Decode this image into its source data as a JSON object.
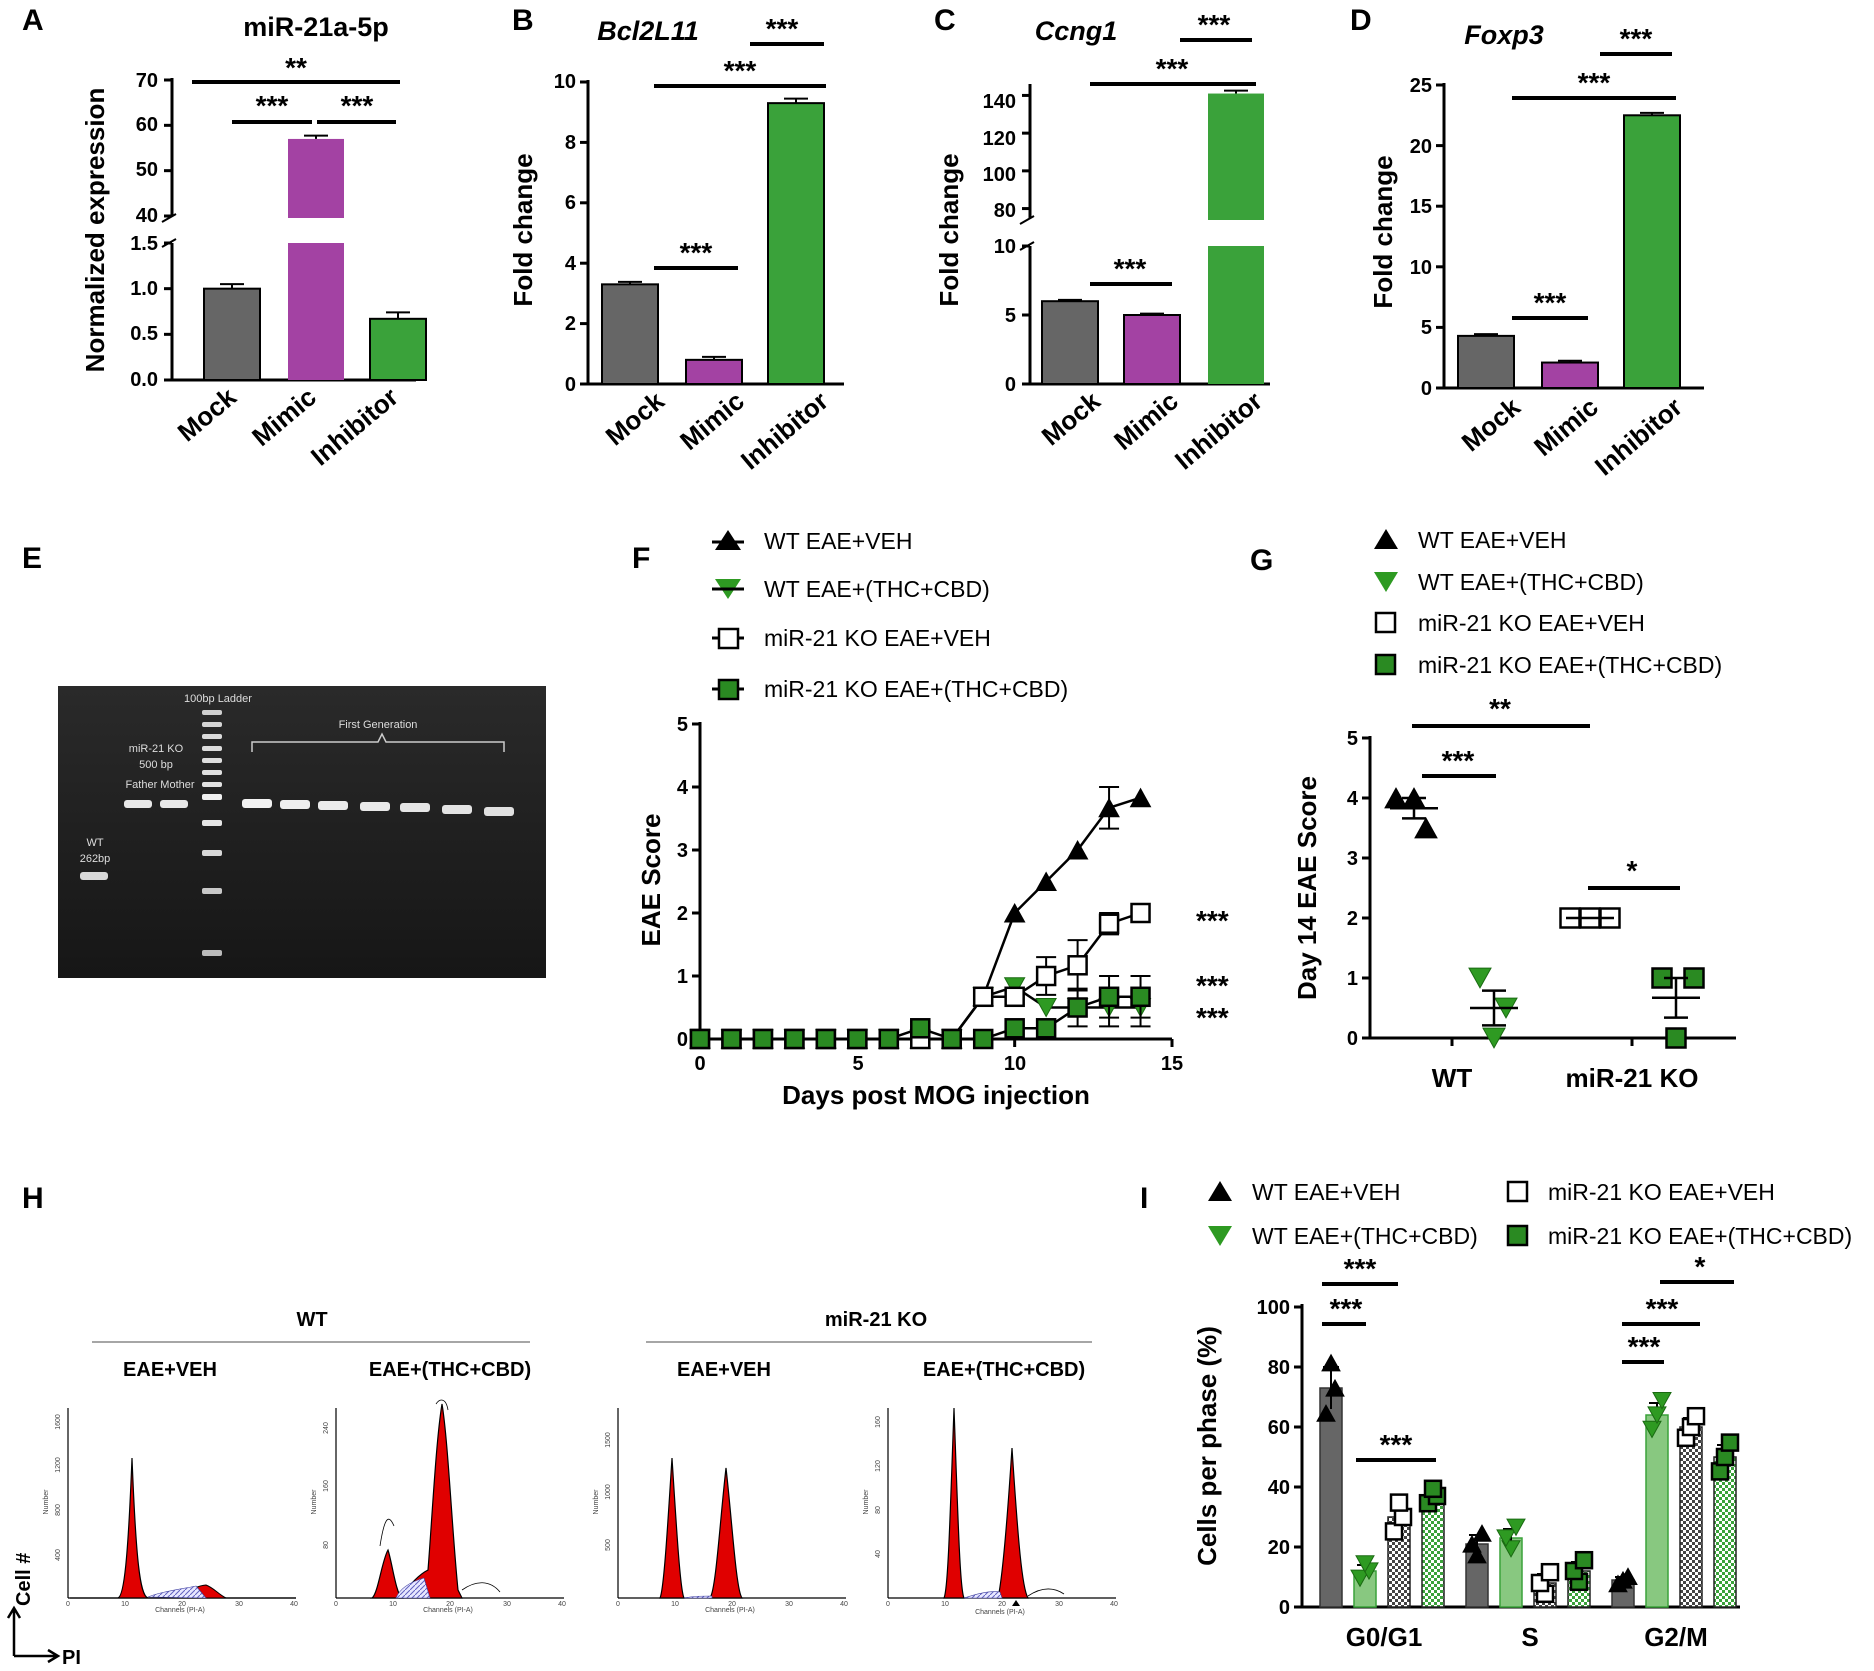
{
  "colors": {
    "mock": "#666666",
    "mimic": "#a342a3",
    "inhibitor": "#3aa23a",
    "green_marker": "#2e9a22",
    "ko_green": "#2a8a22",
    "axis": "#000000",
    "gel_bg": "#1c1c1c",
    "flow_red": "#e00000"
  },
  "panels": {
    "A": {
      "label": "A",
      "title": "miR-21a-5p",
      "ylabel": "Normalized expression",
      "upper_ticks": [
        "70",
        "60",
        "50",
        "40"
      ],
      "lower_ticks": [
        "1.5",
        "1.0",
        "0.5",
        "0.0"
      ],
      "sig": [
        "**",
        "***",
        "***"
      ]
    },
    "B": {
      "label": "B",
      "title": "Bcl2L11",
      "ylabel": "Fold change",
      "ticks": [
        "10",
        "8",
        "6",
        "4",
        "2",
        "0"
      ],
      "sig": [
        "***",
        "***",
        "***"
      ]
    },
    "C": {
      "label": "C",
      "title": "Ccng1",
      "ylabel": "Fold change",
      "upper_ticks": [
        "140",
        "120",
        "100",
        "80"
      ],
      "lower_ticks": [
        "10",
        "5",
        "0"
      ],
      "sig": [
        "***",
        "***",
        "***"
      ]
    },
    "D": {
      "label": "D",
      "title": "Foxp3",
      "ylabel": "Fold change",
      "ticks": [
        "25",
        "20",
        "15",
        "10",
        "5",
        "0"
      ],
      "sig": [
        "***",
        "***",
        "***"
      ]
    },
    "E": {
      "label": "E",
      "gel_labels": {
        "ladder": "100bp Ladder",
        "ko_line1": "miR-21 KO",
        "ko_line2": "500 bp",
        "parents": "Father Mother",
        "first_gen": "First Generation",
        "wt_line1": "WT",
        "wt_line2": "262bp"
      }
    },
    "F": {
      "label": "F",
      "ylabel": "EAE Score",
      "xlabel": "Days post MOG injection",
      "yticks": [
        "5",
        "4",
        "3",
        "2",
        "1",
        "0"
      ],
      "xticks": [
        "0",
        "5",
        "10",
        "15"
      ],
      "sig": [
        "***",
        "***",
        "***"
      ],
      "legend": [
        "WT EAE+VEH",
        "WT EAE+(THC+CBD)",
        "miR-21 KO EAE+VEH",
        "miR-21 KO EAE+(THC+CBD)"
      ]
    },
    "G": {
      "label": "G",
      "ylabel": "Day 14 EAE Score",
      "yticks": [
        "5",
        "4",
        "3",
        "2",
        "1",
        "0"
      ],
      "xcats": [
        "WT",
        "miR-21 KO"
      ],
      "sig": [
        "**",
        "***",
        "*"
      ],
      "legend": [
        "WT EAE+VEH",
        "WT EAE+(THC+CBD)",
        "miR-21 KO EAE+VEH",
        "miR-21 KO EAE+(THC+CBD)"
      ]
    },
    "H": {
      "label": "H",
      "group_wt": "WT",
      "group_ko": "miR-21 KO",
      "conditions": [
        "EAE+VEH",
        "EAE+(THC+CBD)",
        "EAE+VEH",
        "EAE+(THC+CBD)"
      ],
      "y_axis": "Cell #",
      "x_axis": "PI",
      "mini_axis": {
        "ylabel": "Number",
        "xlabel": "Channels (PI-A)",
        "xticks": [
          "0",
          "10",
          "20",
          "30",
          "40"
        ],
        "yticks_1": [
          "1600",
          "1200",
          "800",
          "400"
        ],
        "yticks_2": [
          "240",
          "160",
          "80"
        ],
        "yticks_3": [
          "1500",
          "1000",
          "500"
        ],
        "yticks_4": [
          "160",
          "120",
          "80",
          "40"
        ]
      }
    },
    "I": {
      "label": "I",
      "ylabel": "Cells per phase (%)",
      "yticks": [
        "100",
        "80",
        "60",
        "40",
        "20",
        "0"
      ],
      "xcats": [
        "G0/G1",
        "S",
        "G2/M"
      ],
      "sig": [
        "***",
        "***",
        "***",
        "***",
        "***",
        "*"
      ],
      "legend": [
        "WT EAE+VEH",
        "WT EAE+(THC+CBD)",
        "miR-21 KO EAE+VEH",
        "miR-21 KO EAE+(THC+CBD)"
      ]
    }
  },
  "chart_data": [
    {
      "id": "A",
      "type": "bar",
      "title": "miR-21a-5p",
      "xlabel": "",
      "ylabel": "Normalized expression",
      "categories": [
        "Mock",
        "Mimic",
        "Inhibitor"
      ],
      "values": [
        1.0,
        57.0,
        0.67
      ],
      "errors": [
        0.05,
        0.3,
        0.07
      ],
      "y_axis_break": [
        1.5,
        40
      ],
      "ylim": [
        0,
        70
      ]
    },
    {
      "id": "B",
      "type": "bar",
      "title": "Bcl2L11",
      "ylabel": "Fold change",
      "categories": [
        "Mock",
        "Mimic",
        "Inhibitor"
      ],
      "values": [
        3.3,
        0.8,
        9.3
      ],
      "errors": [
        0.08,
        0.1,
        0.15
      ],
      "ylim": [
        0,
        10
      ]
    },
    {
      "id": "C",
      "type": "bar",
      "title": "Ccng1",
      "ylabel": "Fold change",
      "categories": [
        "Mock",
        "Mimic",
        "Inhibitor"
      ],
      "values": [
        6.0,
        5.0,
        141.0
      ],
      "errors": [
        0.1,
        0.1,
        0.5
      ],
      "y_axis_break": [
        10,
        75
      ],
      "ylim": [
        0,
        145
      ]
    },
    {
      "id": "D",
      "type": "bar",
      "title": "Foxp3",
      "ylabel": "Fold change",
      "categories": [
        "Mock",
        "Mimic",
        "Inhibitor"
      ],
      "values": [
        4.3,
        2.1,
        22.5
      ],
      "errors": [
        0.15,
        0.15,
        0.2
      ],
      "ylim": [
        0,
        25
      ]
    },
    {
      "id": "F",
      "type": "line",
      "xlabel": "Days post MOG injection",
      "ylabel": "EAE Score",
      "x": [
        0,
        1,
        2,
        3,
        4,
        5,
        6,
        7,
        8,
        9,
        10,
        11,
        12,
        13,
        14
      ],
      "xlim": [
        0,
        15
      ],
      "ylim": [
        0,
        5
      ],
      "series": [
        {
          "name": "WT EAE+VEH",
          "values": [
            0,
            0,
            0,
            0,
            0,
            0,
            0,
            0,
            0,
            0.67,
            2.0,
            2.5,
            3.0,
            3.67,
            3.83
          ],
          "errors": [
            0,
            0,
            0,
            0,
            0,
            0,
            0,
            0,
            0,
            0,
            0,
            0,
            0,
            0.33,
            0
          ]
        },
        {
          "name": "WT EAE+(THC+CBD)",
          "values": [
            0,
            0,
            0,
            0,
            0,
            0,
            0,
            0,
            0,
            0.67,
            0.83,
            0.5,
            0.5,
            0.5,
            0.5
          ],
          "errors": [
            0,
            0,
            0,
            0,
            0,
            0,
            0,
            0,
            0,
            0,
            0,
            0,
            0,
            0.3,
            0.3
          ]
        },
        {
          "name": "miR-21 KO EAE+VEH",
          "values": [
            0,
            0,
            0,
            0,
            0,
            0,
            0,
            0,
            0,
            0.67,
            0.67,
            1.0,
            1.17,
            1.83,
            2.0
          ],
          "errors": [
            0,
            0,
            0,
            0,
            0,
            0,
            0,
            0,
            0,
            0,
            0,
            0.3,
            0.4,
            0.17,
            0
          ]
        },
        {
          "name": "miR-21 KO EAE+(THC+CBD)",
          "values": [
            0,
            0,
            0,
            0,
            0,
            0,
            0,
            0.17,
            0,
            0,
            0.17,
            0.17,
            0.5,
            0.67,
            0.67
          ],
          "errors": [
            0,
            0,
            0,
            0,
            0,
            0,
            0,
            0,
            0,
            0,
            0,
            0,
            0.3,
            0.33,
            0.33
          ]
        }
      ]
    },
    {
      "id": "G",
      "type": "scatter",
      "ylabel": "Day 14 EAE Score",
      "categories": [
        "WT",
        "miR-21 KO"
      ],
      "ylim": [
        0,
        5
      ],
      "series": [
        {
          "name": "WT EAE+VEH",
          "points": [
            4.0,
            4.0,
            3.5
          ],
          "mean": 3.83,
          "sem": 0.17
        },
        {
          "name": "WT EAE+(THC+CBD)",
          "points": [
            1.0,
            0.5,
            0.0
          ],
          "mean": 0.5,
          "sem": 0.29
        },
        {
          "name": "miR-21 KO EAE+VEH",
          "points": [
            2.0,
            2.0,
            2.0
          ],
          "mean": 2.0,
          "sem": 0.0
        },
        {
          "name": "miR-21 KO EAE+(THC+CBD)",
          "points": [
            1.0,
            1.0,
            0.0
          ],
          "mean": 0.67,
          "sem": 0.33
        }
      ]
    },
    {
      "id": "I",
      "type": "bar",
      "ylabel": "Cells per phase (%)",
      "categories": [
        "G0/G1",
        "S",
        "G2/M"
      ],
      "ylim": [
        0,
        100
      ],
      "series": [
        {
          "name": "WT EAE+VEH",
          "values": [
            73,
            21,
            9
          ],
          "errors": [
            7,
            3,
            1
          ]
        },
        {
          "name": "WT EAE+(THC+CBD)",
          "values": [
            12,
            23,
            64
          ],
          "errors": [
            2,
            3,
            4
          ]
        },
        {
          "name": "miR-21 KO EAE+VEH",
          "values": [
            30,
            8,
            60
          ],
          "errors": [
            4,
            3,
            3
          ]
        },
        {
          "name": "miR-21 KO EAE+(THC+CBD)",
          "values": [
            37,
            12,
            50
          ],
          "errors": [
            2,
            3,
            4
          ]
        }
      ]
    }
  ]
}
